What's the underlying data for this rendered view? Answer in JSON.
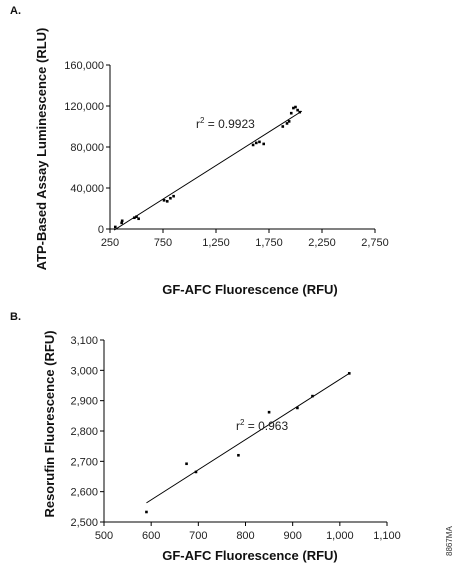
{
  "figure_id": "8867MA",
  "chart_data": [
    {
      "panel": "A.",
      "type": "scatter",
      "xlabel": "GF-AFC Fluorescence (RFU)",
      "ylabel": "ATP-Based Assay Luminescence (RLU)",
      "xlim": [
        250,
        2750
      ],
      "ylim": [
        0,
        160000
      ],
      "xticks": [
        "250",
        "750",
        "1,250",
        "1,750",
        "2,250",
        "2,750"
      ],
      "yticks": [
        "0",
        "40,000",
        "80,000",
        "120,000",
        "160,000"
      ],
      "annotation_base": "r",
      "annotation_sup": "2",
      "annotation_value": " = 0.9923",
      "fit_line": {
        "x": [
          290,
          2060
        ],
        "y": [
          -1000,
          115000
        ]
      },
      "points": [
        {
          "x": 300,
          "y": 2000
        },
        {
          "x": 360,
          "y": 6000
        },
        {
          "x": 365,
          "y": 8000
        },
        {
          "x": 480,
          "y": 11000
        },
        {
          "x": 500,
          "y": 12000
        },
        {
          "x": 520,
          "y": 10000
        },
        {
          "x": 760,
          "y": 28000
        },
        {
          "x": 790,
          "y": 27000
        },
        {
          "x": 820,
          "y": 30000
        },
        {
          "x": 850,
          "y": 32000
        },
        {
          "x": 1600,
          "y": 82000
        },
        {
          "x": 1630,
          "y": 84000
        },
        {
          "x": 1660,
          "y": 85000
        },
        {
          "x": 1700,
          "y": 83000
        },
        {
          "x": 1880,
          "y": 100000
        },
        {
          "x": 1920,
          "y": 103000
        },
        {
          "x": 1940,
          "y": 105000
        },
        {
          "x": 1960,
          "y": 113000
        },
        {
          "x": 1980,
          "y": 118000
        },
        {
          "x": 2000,
          "y": 119000
        },
        {
          "x": 2020,
          "y": 116000
        },
        {
          "x": 2040,
          "y": 114000
        }
      ]
    },
    {
      "panel": "B.",
      "type": "scatter",
      "xlabel": "GF-AFC Fluorescence (RFU)",
      "ylabel": "Resorufin Fluorescence (RFU)",
      "xlim": [
        500,
        1100
      ],
      "ylim": [
        2500,
        3100
      ],
      "xticks": [
        "500",
        "600",
        "700",
        "800",
        "900",
        "1,000",
        "1,100"
      ],
      "yticks": [
        "2,500",
        "2,600",
        "2,700",
        "2,800",
        "2,900",
        "3,000",
        "3,100"
      ],
      "annotation_base": "r",
      "annotation_sup": "2",
      "annotation_value": " = 0.963",
      "fit_line": {
        "x": [
          590,
          1020
        ],
        "y": [
          2563,
          2990
        ]
      },
      "points": [
        {
          "x": 590,
          "y": 2533
        },
        {
          "x": 675,
          "y": 2692
        },
        {
          "x": 695,
          "y": 2665
        },
        {
          "x": 785,
          "y": 2720
        },
        {
          "x": 850,
          "y": 2862
        },
        {
          "x": 910,
          "y": 2876
        },
        {
          "x": 942,
          "y": 2915
        },
        {
          "x": 1020,
          "y": 2990
        }
      ]
    }
  ]
}
